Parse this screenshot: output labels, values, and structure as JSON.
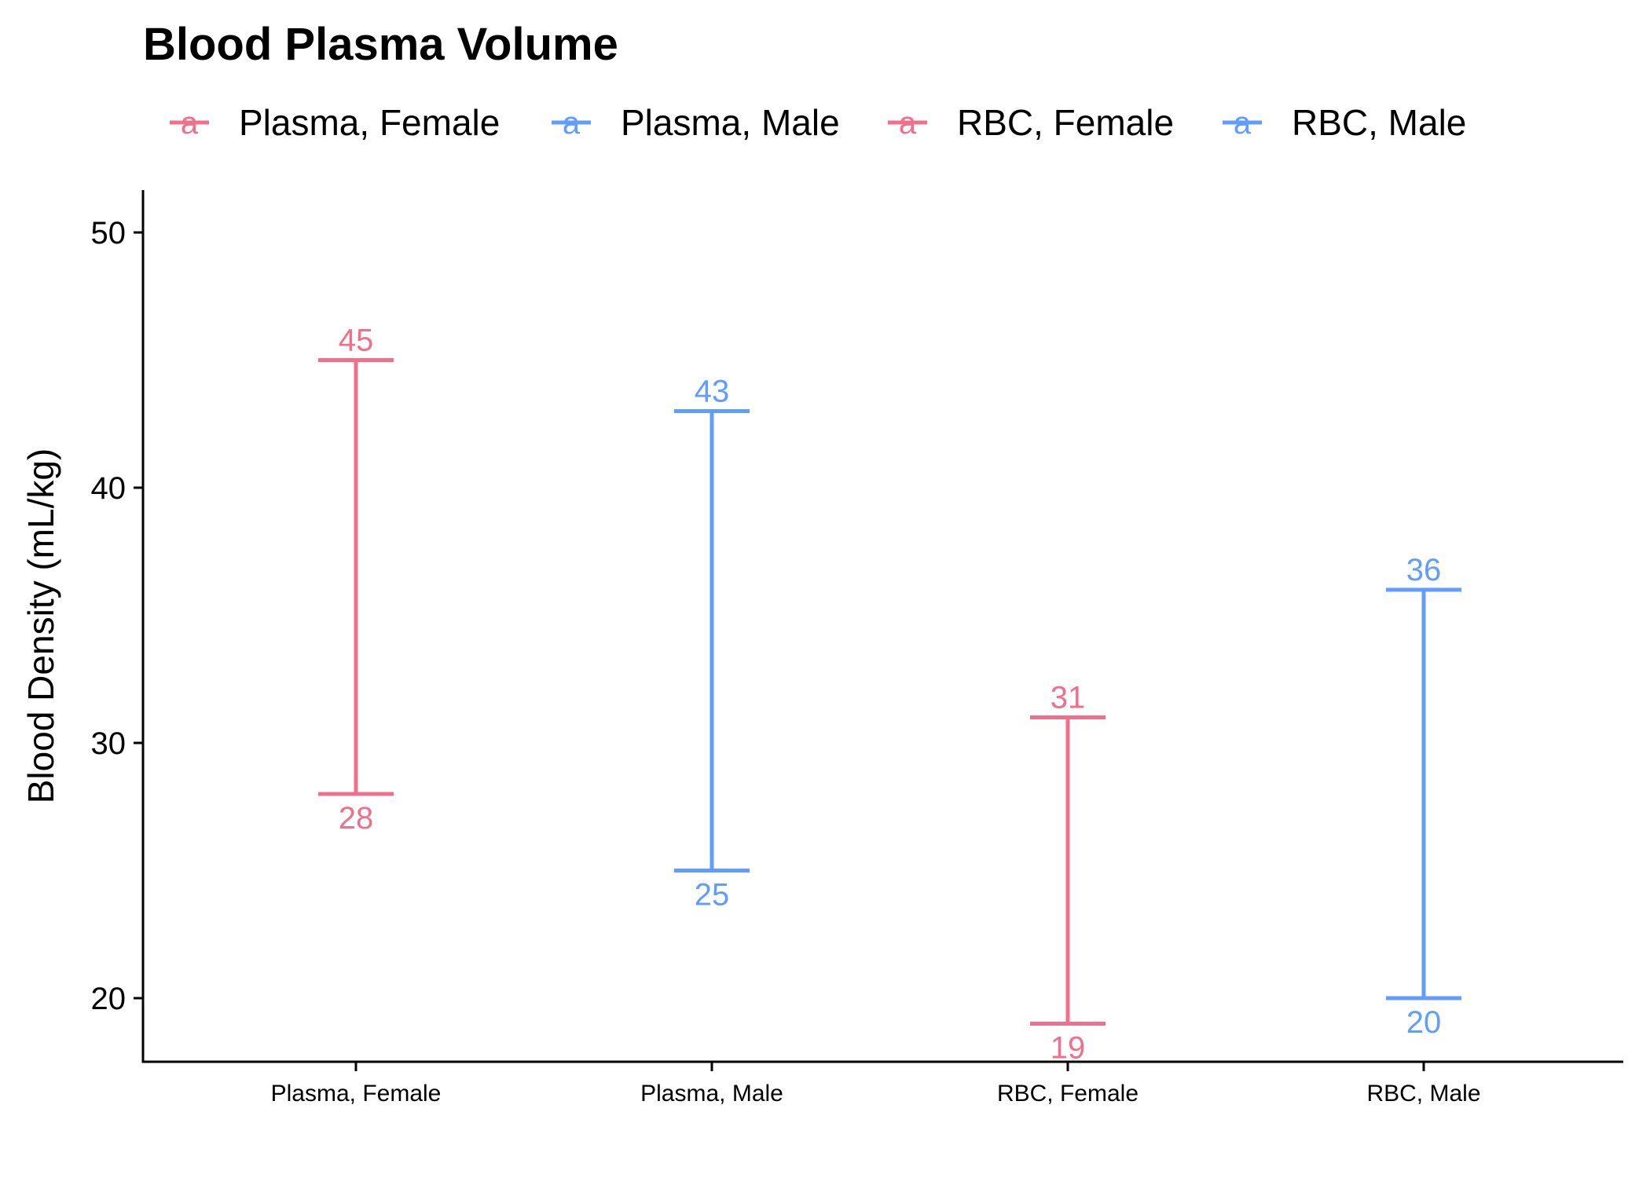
{
  "chart_data": {
    "type": "errorbar",
    "title": "Blood Plasma Volume",
    "xlabel": "",
    "ylabel": "Blood Density (mL/kg)",
    "ylim": [
      17.5,
      51.7
    ],
    "yticks": [
      20,
      30,
      40,
      50
    ],
    "grid": false,
    "legend_position": "top",
    "legend": [
      {
        "label": "Plasma, Female",
        "color": "#F0708C"
      },
      {
        "label": "Plasma, Male",
        "color": "#619CFF"
      },
      {
        "label": "RBC, Female",
        "color": "#F0708C"
      },
      {
        "label": "RBC, Male",
        "color": "#619CFF"
      }
    ],
    "categories": [
      "Plasma, Female",
      "Plasma, Male",
      "RBC, Female",
      "RBC, Male"
    ],
    "series": [
      {
        "category": "Plasma, Female",
        "low": 28,
        "high": 45,
        "color": "#F0708C"
      },
      {
        "category": "Plasma, Male",
        "low": 25,
        "high": 43,
        "color": "#619CFF"
      },
      {
        "category": "RBC, Female",
        "low": 19,
        "high": 31,
        "color": "#F0708C"
      },
      {
        "category": "RBC, Male",
        "low": 20,
        "high": 36,
        "color": "#619CFF"
      }
    ]
  }
}
